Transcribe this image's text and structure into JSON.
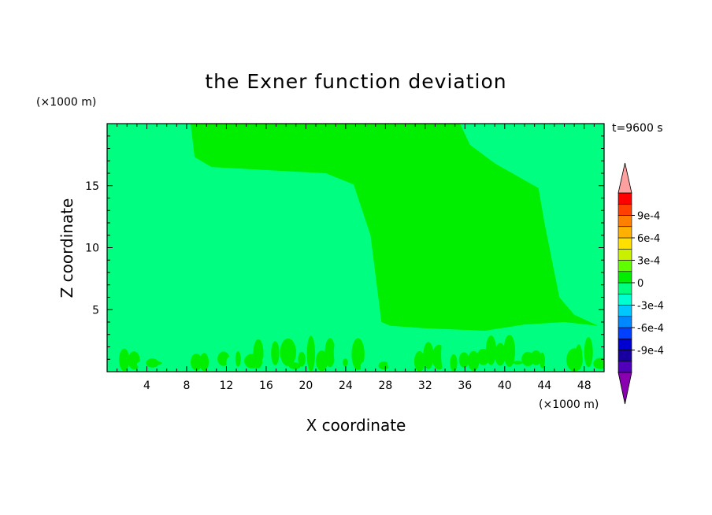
{
  "chart_data": {
    "type": "heatmap",
    "title": "the Exner function deviation",
    "xlabel": "X coordinate",
    "ylabel": "Z coordinate",
    "x_unit": "(×1000 m)",
    "y_unit": "(×1000 m)",
    "time_label": "t=9600 s",
    "xlim": [
      0,
      50
    ],
    "ylim": [
      0,
      20
    ],
    "x_ticks": [
      4,
      8,
      12,
      16,
      20,
      24,
      28,
      32,
      36,
      40,
      44,
      48
    ],
    "y_ticks": [
      5,
      10,
      15
    ],
    "background_color": "#00ff80",
    "region_colors": {
      "near_zero_negative": "#00ff80",
      "near_zero_positive": "#00ee00"
    },
    "positive_region": [
      [
        8.4,
        20
      ],
      [
        8.8,
        17.3
      ],
      [
        10.5,
        16.5
      ],
      [
        15,
        16.3
      ],
      [
        22,
        16
      ],
      [
        24.8,
        15.1
      ],
      [
        26.5,
        11
      ],
      [
        27.6,
        4
      ],
      [
        28.5,
        3.7
      ],
      [
        32,
        3.5
      ],
      [
        38,
        3.3
      ],
      [
        42,
        3.8
      ],
      [
        46,
        4
      ],
      [
        49.4,
        3.7
      ],
      [
        47,
        4.6
      ],
      [
        45.5,
        6
      ],
      [
        44,
        12
      ],
      [
        43.4,
        14.8
      ],
      [
        39,
        16.8
      ],
      [
        36.5,
        18.3
      ],
      [
        35.5,
        20
      ]
    ],
    "surface_band": {
      "top": 3.0,
      "bottom": 0.0,
      "x_start": 0.3,
      "x_end": 49.5
    },
    "colorbar": {
      "labels": [
        "9e-4",
        "6e-4",
        "3e-4",
        "0",
        "-3e-4",
        "-6e-4",
        "-9e-4"
      ],
      "colors": [
        "#5000b8",
        "#1800a0",
        "#0000d0",
        "#0040ff",
        "#0088ff",
        "#00c8ff",
        "#00ffd0",
        "#00ff80",
        "#00ee00",
        "#60ff00",
        "#c8f000",
        "#ffe000",
        "#ffb000",
        "#ff8000",
        "#ff4000",
        "#ff0000"
      ],
      "over_color": "#ffa0a0",
      "under_color": "#8800b0"
    }
  }
}
